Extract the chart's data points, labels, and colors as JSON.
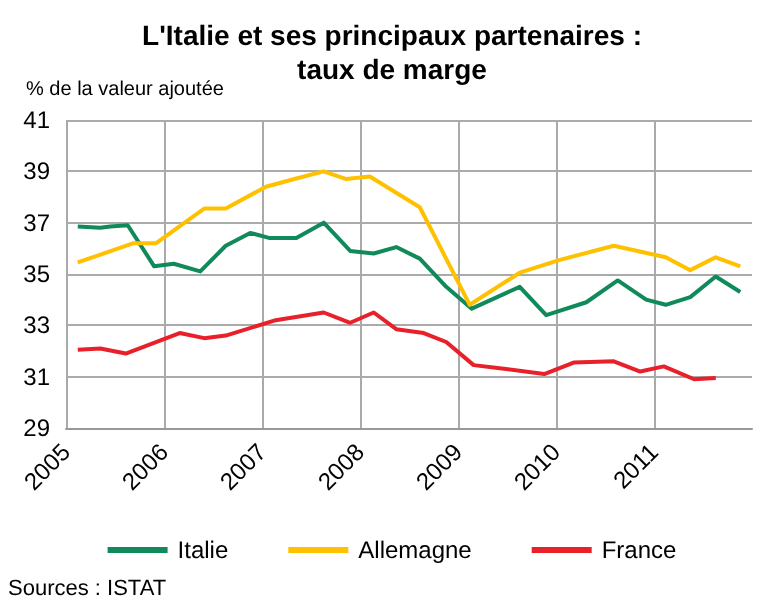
{
  "chart_data": {
    "type": "line",
    "title": "L'Italie et ses principaux partenaires :\ntaux de marge",
    "ylabel": "% de la valeur ajoutée",
    "annotations": [
      "Sources : ISTAT"
    ],
    "series": [
      {
        "name": "Italie",
        "color": "#108a5a",
        "x": [
          2005.12,
          2005.35,
          2005.45,
          2005.63,
          2005.9,
          2006.1,
          2006.37,
          2006.63,
          2006.88,
          2007.08,
          2007.35,
          2007.63,
          2007.9,
          2008.14,
          2008.37,
          2008.61,
          2008.88,
          2009.14,
          2009.63,
          2009.9,
          2010.31,
          2010.63,
          2010.92,
          2011.12,
          2011.37,
          2011.63,
          2011.88
        ],
        "values": [
          36.85,
          36.8,
          36.85,
          36.9,
          35.3,
          35.4,
          35.1,
          36.1,
          36.6,
          36.4,
          36.4,
          37.0,
          35.9,
          35.8,
          36.05,
          35.6,
          34.5,
          33.65,
          34.5,
          33.4,
          33.9,
          34.75,
          34.0,
          33.8,
          34.1,
          34.9,
          34.3
        ]
      },
      {
        "name": "Allemagne",
        "color": "#ffc000",
        "x": [
          2005.12,
          2005.69,
          2005.92,
          2006.41,
          2006.63,
          2007.04,
          2007.33,
          2007.63,
          2007.86,
          2008.1,
          2008.61,
          2009.12,
          2009.63,
          2010.04,
          2010.59,
          2011.12,
          2011.37,
          2011.63,
          2011.88
        ],
        "values": [
          35.45,
          36.2,
          36.2,
          37.55,
          37.55,
          38.4,
          38.7,
          39.0,
          38.7,
          38.8,
          37.6,
          33.8,
          35.05,
          35.55,
          36.1,
          35.65,
          35.15,
          35.65,
          35.3
        ]
      },
      {
        "name": "France",
        "color": "#e8202a",
        "x": [
          2005.12,
          2005.35,
          2005.61,
          2006.16,
          2006.41,
          2006.63,
          2007.14,
          2007.63,
          2007.9,
          2008.14,
          2008.37,
          2008.65,
          2008.88,
          2009.16,
          2009.49,
          2009.88,
          2010.18,
          2010.59,
          2010.86,
          2011.1,
          2011.41,
          2011.63
        ],
        "values": [
          32.05,
          32.1,
          31.9,
          32.7,
          32.5,
          32.6,
          33.2,
          33.5,
          33.1,
          33.5,
          32.85,
          32.7,
          32.35,
          31.45,
          31.3,
          31.1,
          31.55,
          31.6,
          31.2,
          31.4,
          30.9,
          30.95
        ]
      }
    ],
    "xlim": [
      2005,
      2012
    ],
    "xticks": [
      2005,
      2006,
      2007,
      2008,
      2009,
      2010,
      2011
    ],
    "ylim": [
      29,
      41
    ],
    "yticks": [
      29,
      31,
      33,
      35,
      37,
      39,
      41
    ],
    "grid": true,
    "legend": "bottom",
    "marker": "none",
    "line_style": "solid"
  }
}
